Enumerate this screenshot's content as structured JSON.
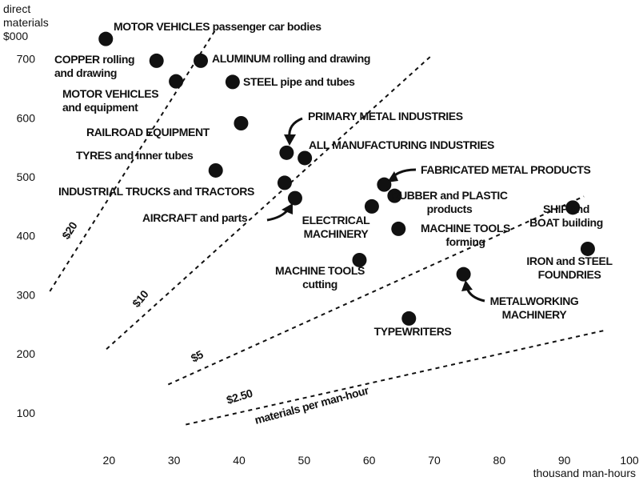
{
  "chart_data": {
    "type": "scatter",
    "y_label": [
      "direct",
      "materials",
      "$000"
    ],
    "x_label": "thousand man-hours",
    "xlim": [
      10,
      100
    ],
    "ylim": [
      40,
      800
    ],
    "xticks": [
      20,
      30,
      40,
      50,
      60,
      70,
      80,
      90,
      100
    ],
    "yticks": [
      100,
      200,
      300,
      400,
      500,
      600,
      700
    ],
    "color": "#111111",
    "points": [
      {
        "label": [
          "MOTOR VEHICLES passenger car bodies"
        ],
        "x": 19.5,
        "y": 734
      },
      {
        "label": [
          "COPPER rolling",
          "and drawing"
        ],
        "x": 27.3,
        "y": 697
      },
      {
        "label": [
          "ALUMINUM rolling and drawing"
        ],
        "x": 34.1,
        "y": 697
      },
      {
        "label": [
          "MOTOR VEHICLES",
          "and equipment"
        ],
        "x": 30.3,
        "y": 662
      },
      {
        "label": [
          "STEEL pipe and tubes"
        ],
        "x": 39,
        "y": 661
      },
      {
        "label": [
          "RAILROAD EQUIPMENT"
        ],
        "x": 40.3,
        "y": 591
      },
      {
        "label": [
          "TYRES and inner tubes"
        ],
        "x": 36.4,
        "y": 511
      },
      {
        "label": [
          "PRIMARY METAL INDUSTRIES"
        ],
        "x": 47.3,
        "y": 541
      },
      {
        "label": [
          "ALL MANUFACTURING INDUSTRIES"
        ],
        "x": 50.1,
        "y": 532
      },
      {
        "label": [
          "INDUSTRIAL TRUCKS and TRACTORS"
        ],
        "x": 47,
        "y": 490
      },
      {
        "label": [
          "AIRCRAFT and parts"
        ],
        "x": 48.6,
        "y": 464
      },
      {
        "label": [
          "FABRICATED METAL PRODUCTS"
        ],
        "x": 62.3,
        "y": 487
      },
      {
        "label": [
          "RUBBER and PLASTIC",
          "products"
        ],
        "x": 63.9,
        "y": 468
      },
      {
        "label": [
          "ELECTRICAL",
          "MACHINERY"
        ],
        "x": 60.4,
        "y": 450
      },
      {
        "label": [
          "MACHINE TOOLS",
          "forming"
        ],
        "x": 64.5,
        "y": 412
      },
      {
        "label": [
          "MACHINE TOOLS",
          "cutting"
        ],
        "x": 58.5,
        "y": 359
      },
      {
        "label": [
          "SHIP and",
          "BOAT building"
        ],
        "x": 91.3,
        "y": 448
      },
      {
        "label": [
          "IRON and STEEL",
          "FOUNDRIES"
        ],
        "x": 93.6,
        "y": 378
      },
      {
        "label": [
          "METALWORKING",
          "MACHINERY"
        ],
        "x": 74.5,
        "y": 335
      },
      {
        "label": [
          "TYPEWRITERS"
        ],
        "x": 66.1,
        "y": 260
      }
    ],
    "reference_lines": [
      {
        "label": "$20",
        "x": [
          10.9,
          36.4
        ],
        "y": [
          306,
          750
        ]
      },
      {
        "label": "$10",
        "x": [
          19.6,
          69.7
        ],
        "y": [
          208,
          707
        ]
      },
      {
        "label": "$5",
        "x": [
          29.1,
          93
        ],
        "y": [
          148,
          467
        ]
      },
      {
        "label": "$2.50",
        "x": [
          31.8,
          96.3
        ],
        "y": [
          80,
          240
        ]
      }
    ],
    "reference_note": "materials per man-hour"
  }
}
